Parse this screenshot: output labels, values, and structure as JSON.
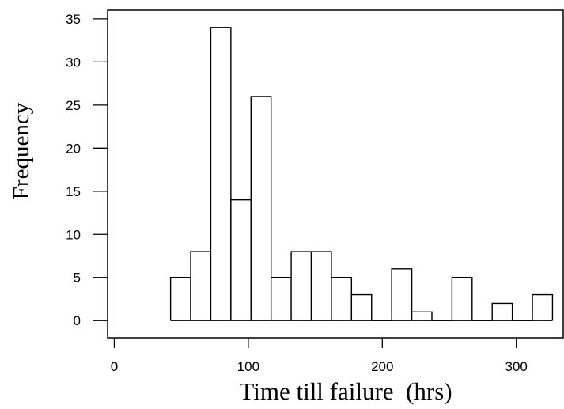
{
  "chart_data": {
    "type": "bar",
    "subtype": "histogram",
    "xlabel": "Time till failure  (hrs)",
    "ylabel": "Frequency",
    "xlim": [
      -5,
      335
    ],
    "ylim": [
      -2,
      36
    ],
    "x_ticks": [
      0,
      100,
      200,
      300
    ],
    "y_ticks": [
      0,
      5,
      10,
      15,
      20,
      25,
      30,
      35
    ],
    "bins": [
      {
        "x0": 42,
        "x1": 57,
        "value": 5
      },
      {
        "x0": 57,
        "x1": 72,
        "value": 8
      },
      {
        "x0": 72,
        "x1": 87,
        "value": 34
      },
      {
        "x0": 87,
        "x1": 102,
        "value": 14
      },
      {
        "x0": 102,
        "x1": 117,
        "value": 26
      },
      {
        "x0": 117,
        "x1": 132,
        "value": 5
      },
      {
        "x0": 132,
        "x1": 147,
        "value": 8
      },
      {
        "x0": 147,
        "x1": 162,
        "value": 8
      },
      {
        "x0": 162,
        "x1": 177,
        "value": 5
      },
      {
        "x0": 177,
        "x1": 192,
        "value": 3
      },
      {
        "x0": 192,
        "x1": 207,
        "value": 0
      },
      {
        "x0": 207,
        "x1": 222,
        "value": 6
      },
      {
        "x0": 222,
        "x1": 237,
        "value": 1
      },
      {
        "x0": 237,
        "x1": 252,
        "value": 0
      },
      {
        "x0": 252,
        "x1": 267,
        "value": 5
      },
      {
        "x0": 267,
        "x1": 282,
        "value": 0
      },
      {
        "x0": 282,
        "x1": 297,
        "value": 2
      },
      {
        "x0": 297,
        "x1": 312,
        "value": 0
      },
      {
        "x0": 312,
        "x1": 327,
        "value": 3
      }
    ],
    "grid": false,
    "legend": "none"
  }
}
